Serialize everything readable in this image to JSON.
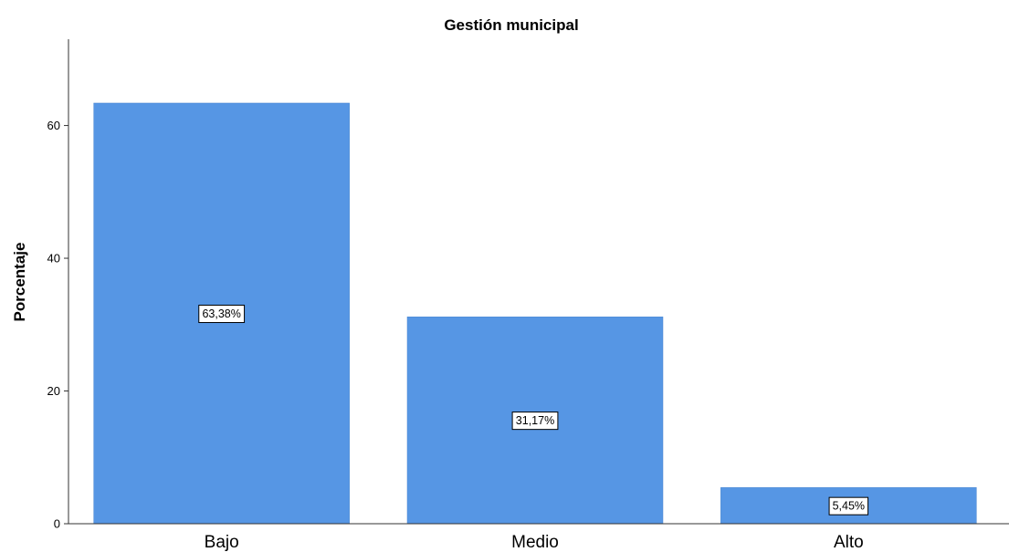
{
  "chart_data": {
    "type": "bar",
    "title": "Gestión municipal",
    "xlabel": "",
    "ylabel": "Porcentaje",
    "categories": [
      "Bajo",
      "Medio",
      "Alto"
    ],
    "values": [
      63.38,
      31.17,
      5.45
    ],
    "data_labels": [
      "63,38%",
      "31,17%",
      "5,45%"
    ],
    "yticks": [
      0,
      20,
      40,
      60
    ],
    "ylim": [
      0,
      73
    ],
    "grid": false,
    "legend": "none",
    "bar_color": "#5696e4"
  }
}
